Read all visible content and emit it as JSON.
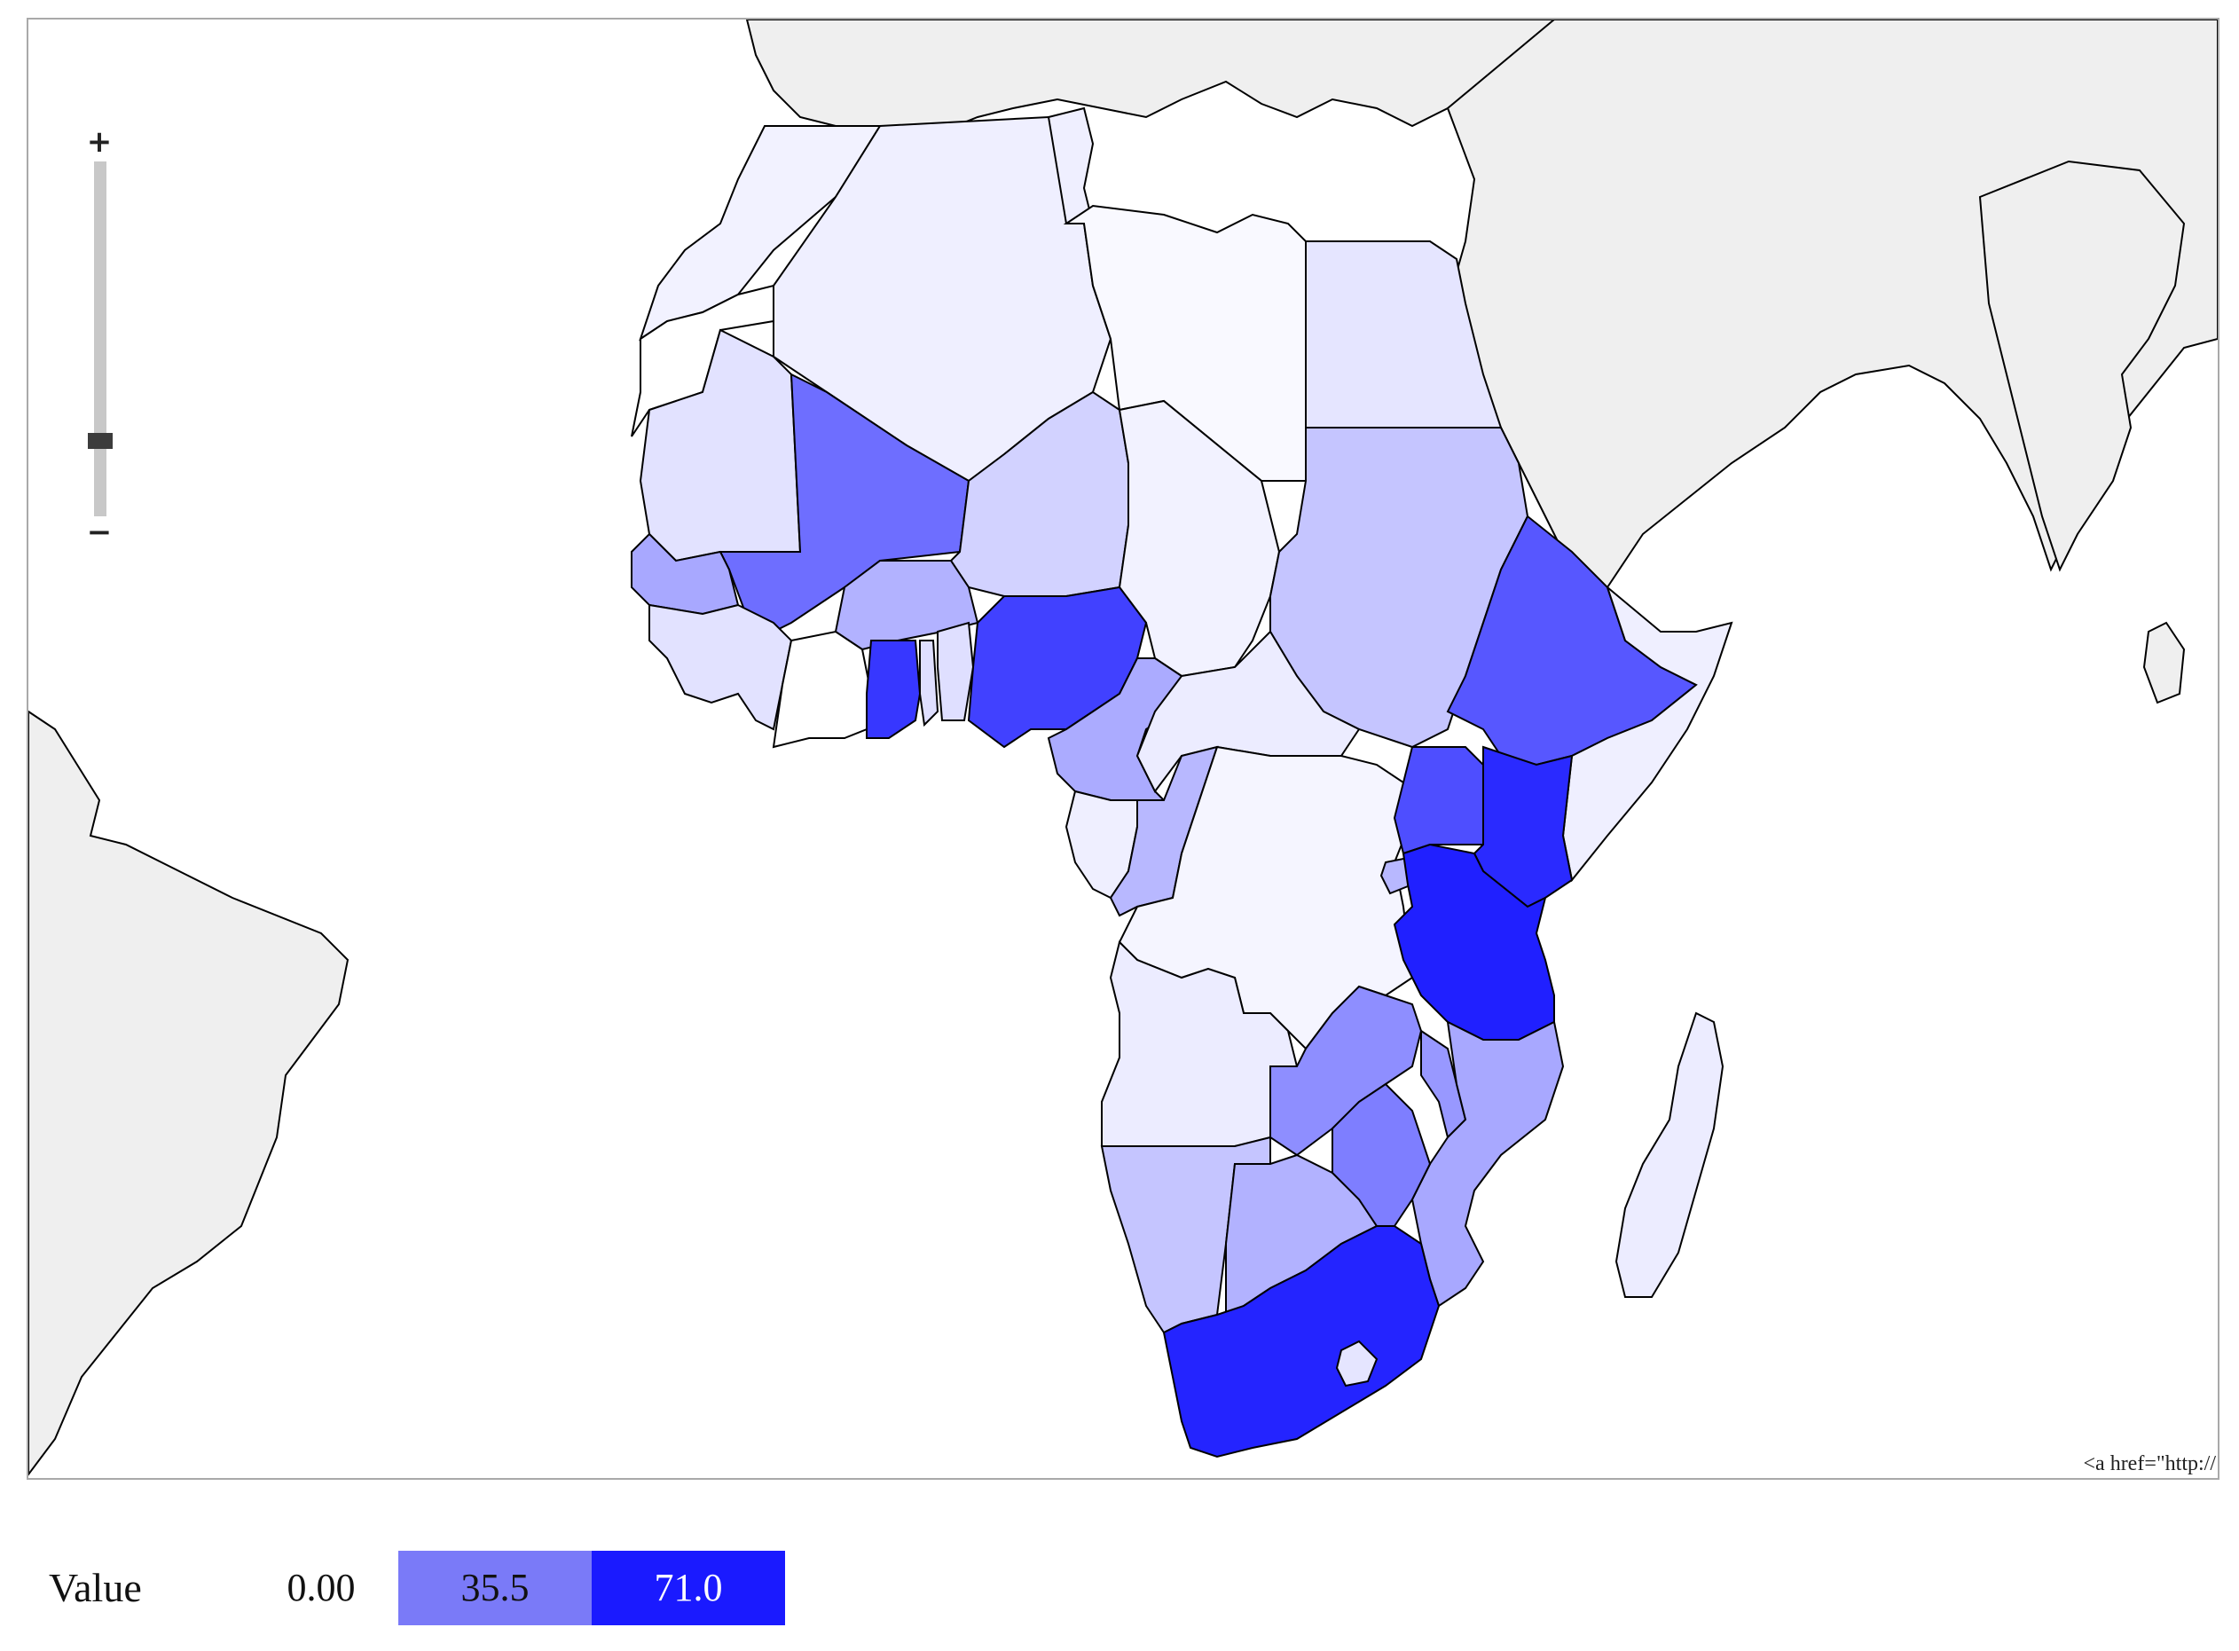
{
  "map": {
    "attribution_text": "<a href=\"http://"
  },
  "zoom": {
    "plus_label": "+",
    "minus_label": "−",
    "level": 0.2
  },
  "legend": {
    "title": "Value",
    "items": [
      {
        "label": "0.00",
        "color": "#ffffff",
        "text_color": "#111111"
      },
      {
        "label": "35.5",
        "color": "#7a7af8",
        "text_color": "#111111"
      },
      {
        "label": "71.0",
        "color": "#1a1aff",
        "text_color": "#ffffff"
      }
    ]
  },
  "colors": {
    "background_land": "#efefef",
    "ocean": "#ffffff",
    "border": "#000000",
    "scale_min": "#ffffff",
    "scale_max": "#1a1aff"
  },
  "countries": [
    {
      "name": "Morocco",
      "value": 4
    },
    {
      "name": "Western Sahara",
      "value": 0
    },
    {
      "name": "Algeria",
      "value": 5
    },
    {
      "name": "Tunisia",
      "value": 5
    },
    {
      "name": "Libya",
      "value": 2
    },
    {
      "name": "Egypt",
      "value": 8
    },
    {
      "name": "Mauritania",
      "value": 9
    },
    {
      "name": "Mali",
      "value": 45
    },
    {
      "name": "Niger",
      "value": 14
    },
    {
      "name": "Chad",
      "value": 4
    },
    {
      "name": "Sudan",
      "value": 18
    },
    {
      "name": "Senegal",
      "value": 27
    },
    {
      "name": "Guinea",
      "value": 9
    },
    {
      "name": "Burkina Faso",
      "value": 24
    },
    {
      "name": "Ivory Coast",
      "value": 0
    },
    {
      "name": "Ghana",
      "value": 62
    },
    {
      "name": "Togo",
      "value": 10
    },
    {
      "name": "Benin",
      "value": 10
    },
    {
      "name": "Nigeria",
      "value": 59
    },
    {
      "name": "Cameroon",
      "value": 26
    },
    {
      "name": "Central African Republic",
      "value": 6
    },
    {
      "name": "Ethiopia",
      "value": 52
    },
    {
      "name": "Somalia",
      "value": 5
    },
    {
      "name": "Gabon",
      "value": 5
    },
    {
      "name": "Congo",
      "value": 22
    },
    {
      "name": "DR Congo",
      "value": 3
    },
    {
      "name": "Uganda",
      "value": 55
    },
    {
      "name": "Kenya",
      "value": 66
    },
    {
      "name": "Rwanda",
      "value": 22
    },
    {
      "name": "Tanzania",
      "value": 69
    },
    {
      "name": "Angola",
      "value": 6
    },
    {
      "name": "Zambia",
      "value": 35
    },
    {
      "name": "Malawi",
      "value": 32
    },
    {
      "name": "Mozambique",
      "value": 27
    },
    {
      "name": "Namibia",
      "value": 18
    },
    {
      "name": "Botswana",
      "value": 24
    },
    {
      "name": "Zimbabwe",
      "value": 40
    },
    {
      "name": "South Africa",
      "value": 68
    },
    {
      "name": "Lesotho",
      "value": 8
    },
    {
      "name": "Madagascar",
      "value": 6
    }
  ]
}
